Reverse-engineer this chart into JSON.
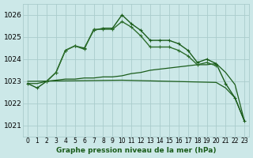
{
  "title": "Graphe pression niveau de la mer (hPa)",
  "bg_color": "#cce8e8",
  "grid_color": "#aacccc",
  "dark_green": "#1a5c1a",
  "mid_green": "#2d6e2d",
  "ylim": [
    1020.5,
    1026.5
  ],
  "xlim": [
    -0.5,
    23.5
  ],
  "yticks": [
    1021,
    1022,
    1023,
    1024,
    1025,
    1026
  ],
  "xticks": [
    0,
    1,
    2,
    3,
    4,
    5,
    6,
    7,
    8,
    9,
    10,
    11,
    12,
    13,
    14,
    15,
    16,
    17,
    18,
    19,
    20,
    21,
    22,
    23
  ],
  "series": [
    {
      "x": [
        0,
        1,
        2,
        3,
        4,
        5,
        6,
        7,
        8,
        9,
        10,
        11,
        12,
        13,
        14,
        15,
        16,
        17,
        18,
        19,
        20,
        21,
        22,
        23
      ],
      "y": [
        1022.9,
        1022.7,
        1023.0,
        1023.4,
        1024.4,
        1024.6,
        1024.5,
        1025.3,
        1025.4,
        1025.4,
        1026.0,
        1025.6,
        1025.3,
        1024.85,
        1024.85,
        1024.85,
        1024.7,
        1024.4,
        1023.85,
        1024.0,
        1023.8,
        1022.9,
        1022.25,
        1021.2
      ],
      "color": "#1a5c1a",
      "lw": 1.0,
      "marker": "+",
      "ms": 3.5
    },
    {
      "x": [
        2,
        3,
        4,
        5,
        6,
        7,
        8,
        9,
        10,
        11,
        12,
        13,
        14,
        15,
        16,
        17,
        18,
        19,
        20
      ],
      "y": [
        1023.0,
        1023.4,
        1024.4,
        1024.6,
        1024.45,
        1025.35,
        1025.35,
        1025.35,
        1025.7,
        1025.45,
        1025.05,
        1024.55,
        1024.55,
        1024.55,
        1024.4,
        1024.15,
        1023.75,
        1023.85,
        1023.7
      ],
      "color": "#2d6e2d",
      "lw": 1.0,
      "marker": "+",
      "ms": 3.5
    },
    {
      "x": [
        0,
        1,
        2,
        3,
        4,
        5,
        6,
        7,
        8,
        9,
        10,
        11,
        12,
        13,
        14,
        15,
        16,
        17,
        18,
        19,
        20,
        21,
        22,
        23
      ],
      "y": [
        1022.9,
        1022.9,
        1023.0,
        1023.05,
        1023.1,
        1023.1,
        1023.15,
        1023.15,
        1023.2,
        1023.2,
        1023.25,
        1023.35,
        1023.4,
        1023.5,
        1023.55,
        1023.6,
        1023.65,
        1023.7,
        1023.75,
        1023.75,
        1023.8,
        1023.4,
        1022.85,
        1021.2
      ],
      "color": "#1a5c1a",
      "lw": 0.9,
      "marker": null,
      "ms": 0
    },
    {
      "x": [
        0,
        10,
        20,
        21,
        22,
        23
      ],
      "y": [
        1023.0,
        1023.05,
        1022.95,
        1022.7,
        1022.25,
        1021.2
      ],
      "color": "#1a5c1a",
      "lw": 0.9,
      "marker": null,
      "ms": 0
    }
  ]
}
